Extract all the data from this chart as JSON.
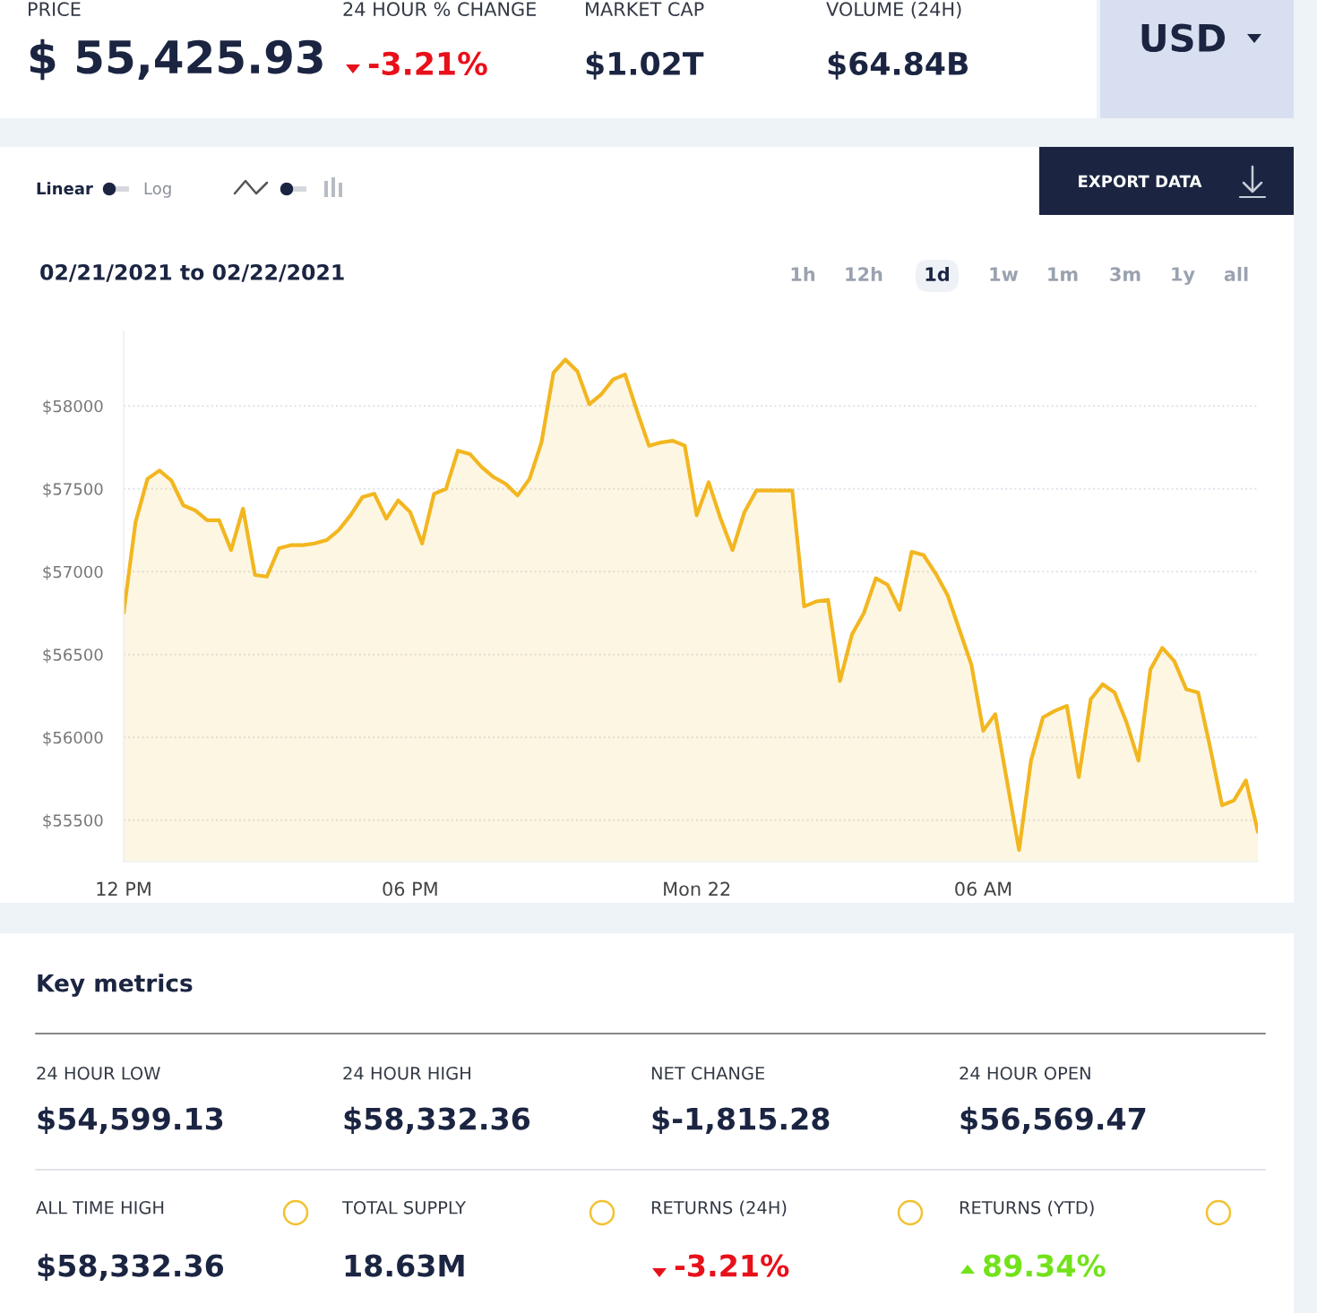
{
  "chart_data": [
    {
      "type": "other",
      "annotations": [
        "PRICE",
        "$ 55,425.93",
        "24 HOUR % CHANGE",
        "-3.21%",
        "MARKET CAP",
        "$1.02T",
        "VOLUME (24H)",
        "$64.84B",
        "USD"
      ]
    },
    {
      "type": "area",
      "title": "02/21/2021 to 02/22/2021",
      "color": "#f2b61f",
      "x": [
        "2021-02-21T12:00",
        "2021-02-21T12:15",
        "2021-02-21T12:30",
        "2021-02-21T12:45",
        "2021-02-21T13:00",
        "2021-02-21T13:15",
        "2021-02-21T13:30",
        "2021-02-21T13:45",
        "2021-02-21T14:00",
        "2021-02-21T14:15",
        "2021-02-21T14:30",
        "2021-02-21T14:45",
        "2021-02-21T15:00",
        "2021-02-21T15:15",
        "2021-02-21T15:30",
        "2021-02-21T15:45",
        "2021-02-21T16:00",
        "2021-02-21T16:15",
        "2021-02-21T16:30",
        "2021-02-21T16:45",
        "2021-02-21T17:00",
        "2021-02-21T17:15",
        "2021-02-21T17:30",
        "2021-02-21T17:45",
        "2021-02-21T18:00",
        "2021-02-21T18:15",
        "2021-02-21T18:30",
        "2021-02-21T18:45",
        "2021-02-21T19:00",
        "2021-02-21T19:15",
        "2021-02-21T19:30",
        "2021-02-21T19:45",
        "2021-02-21T20:00",
        "2021-02-21T20:15",
        "2021-02-21T20:30",
        "2021-02-21T20:45",
        "2021-02-21T21:00",
        "2021-02-21T21:15",
        "2021-02-21T21:30",
        "2021-02-21T21:45",
        "2021-02-21T22:00",
        "2021-02-21T22:15",
        "2021-02-21T22:30",
        "2021-02-21T22:45",
        "2021-02-21T23:00",
        "2021-02-21T23:15",
        "2021-02-21T23:30",
        "2021-02-21T23:45",
        "2021-02-22T00:00",
        "2021-02-22T00:15",
        "2021-02-22T00:30",
        "2021-02-22T00:45",
        "2021-02-22T01:00",
        "2021-02-22T01:15",
        "2021-02-22T01:30",
        "2021-02-22T01:45",
        "2021-02-22T02:00",
        "2021-02-22T02:15",
        "2021-02-22T02:30",
        "2021-02-22T02:45",
        "2021-02-22T03:00",
        "2021-02-22T03:15",
        "2021-02-22T03:30",
        "2021-02-22T03:45",
        "2021-02-22T04:00",
        "2021-02-22T04:15",
        "2021-02-22T04:30",
        "2021-02-22T04:45",
        "2021-02-22T05:00",
        "2021-02-22T05:15",
        "2021-02-22T05:30",
        "2021-02-22T05:45",
        "2021-02-22T06:00",
        "2021-02-22T06:15",
        "2021-02-22T06:30",
        "2021-02-22T06:45",
        "2021-02-22T07:00",
        "2021-02-22T07:15",
        "2021-02-22T07:30",
        "2021-02-22T07:45",
        "2021-02-22T08:00",
        "2021-02-22T08:15",
        "2021-02-22T08:30",
        "2021-02-22T08:45",
        "2021-02-22T09:00",
        "2021-02-22T09:15",
        "2021-02-22T09:30",
        "2021-02-22T09:45",
        "2021-02-22T10:00",
        "2021-02-22T10:15",
        "2021-02-22T10:30",
        "2021-02-22T10:45",
        "2021-02-22T11:00",
        "2021-02-22T11:15",
        "2021-02-22T11:30",
        "2021-02-22T11:45"
      ],
      "values": [
        56750,
        57300,
        57560,
        57610,
        57550,
        57400,
        57370,
        57310,
        57310,
        57130,
        57380,
        56980,
        56970,
        57140,
        57160,
        57160,
        57170,
        57190,
        57250,
        57340,
        57450,
        57470,
        57320,
        57430,
        57360,
        57170,
        57470,
        57500,
        57730,
        57710,
        57630,
        57570,
        57530,
        57460,
        57560,
        57780,
        58200,
        58280,
        58210,
        58010,
        58070,
        58160,
        58190,
        57970,
        57760,
        57780,
        57790,
        57760,
        57340,
        57540,
        57320,
        57130,
        57360,
        57490,
        57490,
        57490,
        57490,
        56790,
        56820,
        56830,
        56340,
        56620,
        56750,
        56960,
        56920,
        56770,
        57120,
        57100,
        56990,
        56860,
        56650,
        56440,
        56040,
        56140,
        55730,
        55320,
        55860,
        56120,
        56160,
        56190,
        55760,
        56230,
        56320,
        56270,
        56090,
        55860,
        56410,
        56540,
        56460,
        56290,
        56270,
        55940,
        55590,
        55620,
        55740,
        55430
      ],
      "xlim": [
        "2021-02-21T12:00",
        "2021-02-22T11:45"
      ],
      "ylim": [
        55250,
        58450
      ],
      "xticks": [
        {
          "value": "2021-02-21T12:00",
          "label": "12 PM"
        },
        {
          "value": "2021-02-21T18:00",
          "label": "06 PM"
        },
        {
          "value": "2021-02-22T00:00",
          "label": "Mon 22"
        },
        {
          "value": "2021-02-22T06:00",
          "label": "06 AM"
        }
      ],
      "yticks": [
        {
          "value": 55500,
          "label": "$55500"
        },
        {
          "value": 56000,
          "label": "$56000"
        },
        {
          "value": 56500,
          "label": "$56500"
        },
        {
          "value": 57000,
          "label": "$57000"
        },
        {
          "value": 57500,
          "label": "$57500"
        },
        {
          "value": 58000,
          "label": "$58000"
        }
      ],
      "grid": "y",
      "annotations": [
        "Linear",
        "Log",
        "EXPORT DATA",
        "1h",
        "12h",
        "1d",
        "1w",
        "1m",
        "3m",
        "1y",
        "all"
      ]
    },
    {
      "type": "other",
      "title": "Key metrics",
      "annotations": [
        "24 HOUR LOW",
        "$54,599.13",
        "24 HOUR HIGH",
        "$58,332.36",
        "NET CHANGE",
        "$-1,815.28",
        "24 HOUR OPEN",
        "$56,569.47",
        "ALL TIME HIGH",
        "$58,332.36",
        "TOTAL SUPPLY",
        "18.63M",
        "RETURNS (24H)",
        "-3.21%",
        "RETURNS (YTD)",
        "89.34%"
      ]
    }
  ]
}
